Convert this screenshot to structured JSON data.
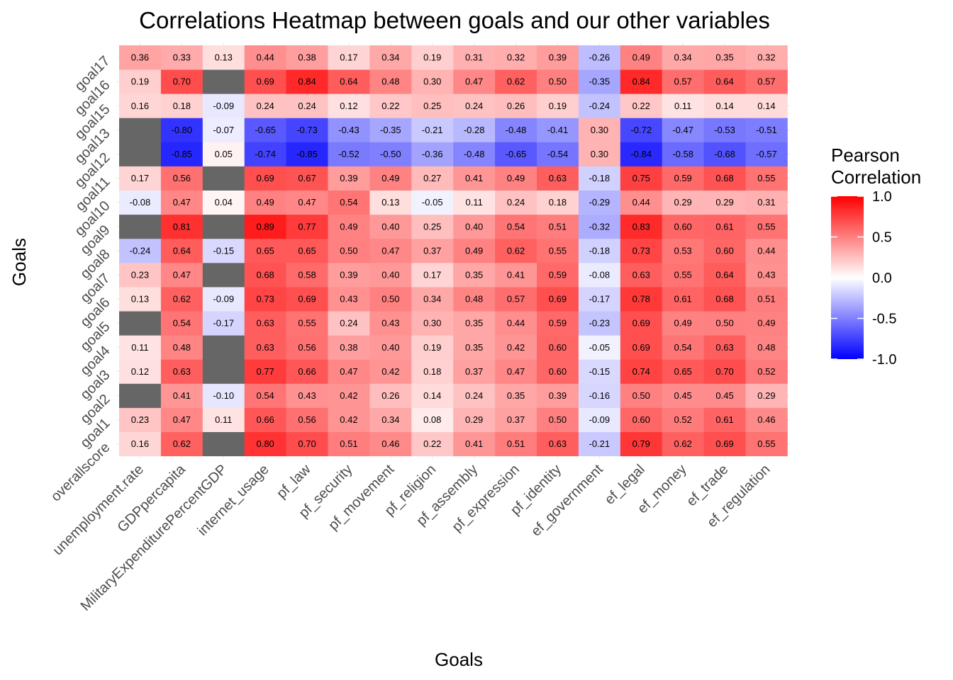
{
  "chart_data": {
    "type": "heatmap",
    "title": "Correlations Heatmap between goals and our other variables",
    "xlabel": "Goals",
    "ylabel": "Goals",
    "x_categories": [
      "unemployment.rate",
      "GDPpercapita",
      "MilitaryExpenditurePercentGDP",
      "internet_usage",
      "pf_law",
      "pf_security",
      "pf_movement",
      "pf_religion",
      "pf_assembly",
      "pf_expression",
      "pf_identity",
      "ef_government",
      "ef_legal",
      "ef_money",
      "ef_trade",
      "ef_regulation"
    ],
    "y_categories": [
      "overallscore",
      "goal1",
      "goal2",
      "goal3",
      "goal4",
      "goal5",
      "goal6",
      "goal7",
      "goal8",
      "goal9",
      "goal10",
      "goal11",
      "goal12",
      "goal13",
      "goal15",
      "goal16",
      "goal17"
    ],
    "values": [
      [
        0.16,
        0.62,
        null,
        0.8,
        0.7,
        0.51,
        0.46,
        0.22,
        0.41,
        0.51,
        0.63,
        -0.21,
        0.79,
        0.62,
        0.69,
        0.55
      ],
      [
        0.23,
        0.47,
        0.11,
        0.66,
        0.56,
        0.42,
        0.34,
        0.08,
        0.29,
        0.37,
        0.5,
        -0.09,
        0.6,
        0.52,
        0.61,
        0.46
      ],
      [
        null,
        0.41,
        -0.1,
        0.54,
        0.43,
        0.42,
        0.26,
        0.14,
        0.24,
        0.35,
        0.39,
        -0.16,
        0.5,
        0.45,
        0.45,
        0.29
      ],
      [
        0.12,
        0.63,
        null,
        0.77,
        0.66,
        0.47,
        0.42,
        0.18,
        0.37,
        0.47,
        0.6,
        -0.15,
        0.74,
        0.65,
        0.7,
        0.52
      ],
      [
        0.11,
        0.48,
        null,
        0.63,
        0.56,
        0.38,
        0.4,
        0.19,
        0.35,
        0.42,
        0.6,
        -0.05,
        0.69,
        0.54,
        0.63,
        0.48
      ],
      [
        null,
        0.54,
        -0.17,
        0.63,
        0.55,
        0.24,
        0.43,
        0.3,
        0.35,
        0.44,
        0.59,
        -0.23,
        0.69,
        0.49,
        0.5,
        0.49
      ],
      [
        0.13,
        0.62,
        -0.09,
        0.73,
        0.69,
        0.43,
        0.5,
        0.34,
        0.48,
        0.57,
        0.69,
        -0.17,
        0.78,
        0.61,
        0.68,
        0.51
      ],
      [
        0.23,
        0.47,
        null,
        0.68,
        0.58,
        0.39,
        0.4,
        0.17,
        0.35,
        0.41,
        0.59,
        -0.08,
        0.63,
        0.55,
        0.64,
        0.43
      ],
      [
        -0.24,
        0.64,
        -0.15,
        0.65,
        0.65,
        0.5,
        0.47,
        0.37,
        0.49,
        0.62,
        0.55,
        -0.18,
        0.73,
        0.53,
        0.6,
        0.44
      ],
      [
        null,
        0.81,
        null,
        0.89,
        0.77,
        0.49,
        0.4,
        0.25,
        0.4,
        0.54,
        0.51,
        -0.32,
        0.83,
        0.6,
        0.61,
        0.55
      ],
      [
        -0.08,
        0.47,
        0.04,
        0.49,
        0.47,
        0.54,
        0.13,
        -0.05,
        0.11,
        0.24,
        0.18,
        -0.29,
        0.44,
        0.29,
        0.29,
        0.31
      ],
      [
        0.17,
        0.56,
        null,
        0.69,
        0.67,
        0.39,
        0.49,
        0.27,
        0.41,
        0.49,
        0.63,
        -0.18,
        0.75,
        0.59,
        0.68,
        0.55
      ],
      [
        null,
        -0.85,
        0.05,
        -0.74,
        -0.85,
        -0.52,
        -0.5,
        -0.36,
        -0.48,
        -0.65,
        -0.54,
        0.3,
        -0.84,
        -0.58,
        -0.68,
        -0.57
      ],
      [
        null,
        -0.8,
        -0.07,
        -0.65,
        -0.73,
        -0.43,
        -0.35,
        -0.21,
        -0.28,
        -0.48,
        -0.41,
        0.3,
        -0.72,
        -0.47,
        -0.53,
        -0.51
      ],
      [
        0.16,
        0.18,
        -0.09,
        0.24,
        0.24,
        0.12,
        0.22,
        0.25,
        0.24,
        0.26,
        0.19,
        -0.24,
        0.22,
        0.11,
        0.14,
        0.14
      ],
      [
        0.19,
        0.7,
        null,
        0.69,
        0.84,
        0.64,
        0.48,
        0.3,
        0.47,
        0.62,
        0.5,
        -0.35,
        0.84,
        0.57,
        0.64,
        0.57
      ],
      [
        0.36,
        0.33,
        0.13,
        0.44,
        0.38,
        0.17,
        0.34,
        0.19,
        0.31,
        0.32,
        0.39,
        -0.26,
        0.49,
        0.34,
        0.35,
        0.32
      ]
    ],
    "color_scale": {
      "low": "#0000ff",
      "mid": "#ffffff",
      "high": "#ff0000",
      "na": "#666666",
      "limits": [
        -1,
        1
      ]
    },
    "legend": {
      "title_lines": [
        "Pearson",
        "Correlation"
      ],
      "ticks": [
        1.0,
        0.5,
        0.0,
        -0.5,
        -1.0
      ],
      "tick_labels": [
        "1.0",
        "0.5",
        "0.0",
        "-0.5",
        "-1.0"
      ],
      "placement": "right"
    },
    "grid": true
  }
}
